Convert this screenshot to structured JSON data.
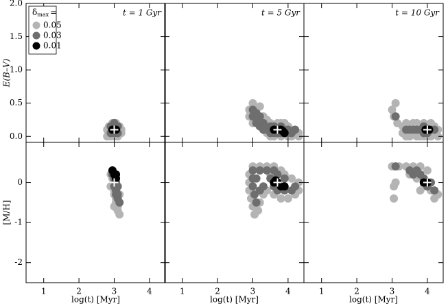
{
  "chart_data": {
    "type": "scatter",
    "xlabel": "log(t) [Myr]",
    "xlim": [
      0.5,
      4.45
    ],
    "xticks": [
      1,
      2,
      3,
      4
    ],
    "rows": [
      {
        "ylabel": "E(B–V)",
        "ylim": [
          -0.09,
          2.0
        ],
        "yticks": [
          {
            "value": 0,
            "label": "0.0"
          },
          0.5,
          {
            "value": 1,
            "label": "1.0"
          },
          1.5,
          {
            "value": 2,
            "label": "2.0"
          }
        ]
      },
      {
        "ylabel": "[M/H]",
        "ylim": [
          -2.5,
          1.0
        ],
        "yticks": [
          0,
          -1,
          -2
        ]
      }
    ],
    "columns": [
      {
        "title": "t = 1 Gyr"
      },
      {
        "title": "t = 5 Gyr"
      },
      {
        "title": "t = 10 Gyr"
      }
    ],
    "legend_title": {
      "symbol": "δ",
      "subscript": "max",
      "suffix": "="
    },
    "series": [
      {
        "name": "0.05",
        "color": "#b4b4b4"
      },
      {
        "name": "0.03",
        "color": "#6e6e6e"
      },
      {
        "name": "0.01",
        "color": "#000000"
      }
    ],
    "panels": [
      [
        {
          "points": [
            {
              "x": [
                2.8,
                2.9,
                3.0,
                3.1,
                3.2,
                2.8,
                2.9,
                3.0,
                3.1,
                3.2,
                2.85,
                2.95,
                3.05,
                3.15,
                2.9,
                3.0,
                3.1
              ],
              "y": [
                0.0,
                0.0,
                0.0,
                0.0,
                0.05,
                0.1,
                0.1,
                0.1,
                0.1,
                0.1,
                0.15,
                0.2,
                0.2,
                0.15,
                0.05,
                0.05,
                0.05
              ]
            },
            {
              "x": [
                2.9,
                3.0,
                3.1,
                2.9,
                3.0,
                3.1,
                3.0
              ],
              "y": [
                0.05,
                0.05,
                0.05,
                0.15,
                0.15,
                0.15,
                0.2
              ]
            },
            {
              "x": [
                2.95,
                3.0,
                3.05
              ],
              "y": [
                0.1,
                0.1,
                0.1
              ]
            }
          ],
          "true": {
            "x": 3.0,
            "y": 0.1
          }
        },
        {
          "points": [
            {
              "x": [
                2.9,
                2.9,
                3.0,
                3.0,
                3.1,
                3.1,
                3.2,
                3.2,
                3.3,
                3.3,
                3.4,
                3.4,
                3.5,
                3.5,
                3.6,
                3.6,
                3.7,
                3.8,
                3.9,
                3.9,
                4.0,
                4.0,
                4.1,
                4.1,
                4.2,
                4.3,
                4.3,
                3.8
              ],
              "y": [
                0.3,
                0.4,
                0.5,
                0.2,
                0.4,
                0.3,
                0.45,
                0.2,
                0.3,
                0.1,
                0.25,
                0.05,
                0.2,
                0.0,
                0.15,
                0.0,
                0.2,
                0.0,
                0.2,
                0.05,
                0.15,
                0.0,
                0.1,
                0.0,
                0.05,
                0.05,
                0.0,
                0.2
              ]
            },
            {
              "x": [
                3.0,
                3.0,
                3.1,
                3.1,
                3.2,
                3.2,
                3.3,
                3.3,
                3.4,
                3.5,
                3.5,
                3.6,
                3.6,
                3.7,
                3.8,
                3.8,
                3.9,
                4.0,
                4.0,
                4.1,
                4.2
              ],
              "y": [
                0.3,
                0.4,
                0.2,
                0.35,
                0.15,
                0.3,
                0.1,
                0.2,
                0.1,
                0.05,
                0.15,
                0.05,
                0.15,
                0.05,
                0.05,
                0.15,
                0.1,
                0.05,
                0.1,
                0.05,
                0.1
              ]
            },
            {
              "x": [
                3.6,
                3.7,
                3.75,
                3.8,
                3.85,
                3.9
              ],
              "y": [
                0.1,
                0.1,
                0.1,
                0.1,
                0.08,
                0.05
              ]
            }
          ],
          "true": {
            "x": 3.7,
            "y": 0.1
          }
        },
        {
          "points": [
            {
              "x": [
                3.0,
                3.1,
                3.05,
                3.15,
                3.3,
                3.3,
                3.4,
                3.4,
                3.5,
                3.5,
                3.6,
                3.6,
                3.7,
                3.7,
                3.8,
                3.8,
                3.9,
                3.9,
                4.0,
                4.0,
                4.1,
                4.1,
                4.2,
                4.2,
                4.3,
                4.3
              ],
              "y": [
                0.4,
                0.5,
                0.3,
                0.2,
                0.15,
                0.05,
                0.2,
                0.0,
                0.15,
                0.0,
                0.2,
                0.05,
                0.2,
                0.0,
                0.15,
                0.0,
                0.2,
                0.0,
                0.15,
                0.0,
                0.2,
                0.0,
                0.15,
                0.05,
                0.1,
                0.0
              ]
            },
            {
              "x": [
                3.1,
                3.4,
                3.5,
                3.6,
                3.7,
                3.8,
                3.9,
                3.9,
                4.0,
                4.1,
                4.2
              ],
              "y": [
                0.3,
                0.1,
                0.1,
                0.1,
                0.1,
                0.1,
                0.05,
                0.15,
                0.05,
                0.1,
                0.1
              ]
            },
            {
              "x": [
                3.95,
                4.0,
                4.05
              ],
              "y": [
                0.1,
                0.1,
                0.1
              ]
            }
          ],
          "true": {
            "x": 4.0,
            "y": 0.1
          }
        }
      ],
      [
        {
          "points": [
            {
              "x": [
                2.9,
                2.95,
                2.95,
                3.0,
                3.0,
                3.05,
                3.05,
                3.1,
                3.1,
                3.15,
                3.15,
                3.1,
                3.05,
                2.9,
                3.0,
                3.15,
                3.05
              ],
              "y": [
                0.2,
                0.1,
                -0.1,
                -0.2,
                -0.3,
                -0.4,
                -0.5,
                -0.6,
                -0.7,
                -0.8,
                -0.5,
                -0.3,
                0.2,
                -0.1,
                -0.6,
                -0.3,
                -0.1
              ]
            },
            {
              "x": [
                2.95,
                3.0,
                3.05,
                3.0,
                3.05,
                3.1,
                3.1,
                3.15,
                3.05,
                3.1
              ],
              "y": [
                0.2,
                0.1,
                0.0,
                -0.1,
                -0.2,
                -0.3,
                -0.4,
                -0.5,
                -0.3,
                -0.1
              ]
            },
            {
              "x": [
                2.95,
                3.0,
                3.05,
                3.05
              ],
              "y": [
                0.3,
                0.2,
                0.1,
                0.2
              ]
            }
          ],
          "true": {
            "x": 3.0,
            "y": 0.0
          }
        },
        {
          "points": [
            {
              "x": [
                3.0,
                3.2,
                3.4,
                3.6,
                3.8,
                3.9,
                2.9,
                2.9,
                2.9,
                2.95,
                3.0,
                3.05,
                3.15,
                3.2,
                3.3,
                3.4,
                3.6,
                3.8,
                4.0,
                4.2,
                4.3,
                4.3,
                4.1,
                3.5
              ],
              "y": [
                0.4,
                0.4,
                0.4,
                0.4,
                0.3,
                0.2,
                0.2,
                0.0,
                -0.2,
                -0.4,
                -0.6,
                -0.8,
                -0.7,
                -0.5,
                -0.3,
                -0.2,
                -0.3,
                -0.4,
                -0.4,
                -0.3,
                -0.2,
                0.0,
                0.1,
                0.2
              ]
            },
            {
              "x": [
                3.0,
                3.2,
                3.4,
                3.6,
                3.7,
                3.0,
                3.0,
                3.05,
                3.1,
                3.2,
                3.3,
                3.5,
                3.6,
                3.7,
                3.9,
                4.1,
                4.2,
                3.9,
                3.1
              ],
              "y": [
                0.3,
                0.3,
                0.3,
                0.3,
                0.2,
                0.1,
                -0.1,
                -0.3,
                -0.5,
                -0.2,
                -0.1,
                0.1,
                -0.1,
                -0.2,
                -0.2,
                -0.2,
                -0.1,
                0.1,
                0.1
              ]
            },
            {
              "x": [
                3.6,
                3.7,
                3.8,
                3.9,
                3.65
              ],
              "y": [
                0.0,
                0.0,
                -0.1,
                -0.1,
                0.05
              ]
            }
          ],
          "true": {
            "x": 3.7,
            "y": 0.0
          }
        },
        {
          "points": [
            {
              "x": [
                3.0,
                3.2,
                3.05,
                3.05,
                3.4,
                3.6,
                3.8,
                3.5,
                3.7,
                3.9,
                4.1,
                4.2,
                4.3,
                3.8,
                4.0,
                3.1
              ],
              "y": [
                0.4,
                0.4,
                -0.1,
                -0.4,
                0.4,
                0.4,
                0.4,
                0.2,
                0.1,
                -0.1,
                -0.2,
                -0.4,
                -0.3,
                -0.2,
                0.3,
                0.0
              ]
            },
            {
              "x": [
                3.1,
                3.5,
                3.7,
                3.8,
                3.9,
                4.0,
                4.1,
                4.2,
                3.6
              ],
              "y": [
                0.4,
                0.3,
                0.3,
                0.2,
                0.1,
                -0.1,
                0.0,
                -0.2,
                0.2
              ]
            },
            {
              "x": [
                3.9,
                4.0
              ],
              "y": [
                0.0,
                0.0
              ]
            }
          ],
          "true": {
            "x": 4.0,
            "y": 0.0
          }
        }
      ]
    ]
  }
}
